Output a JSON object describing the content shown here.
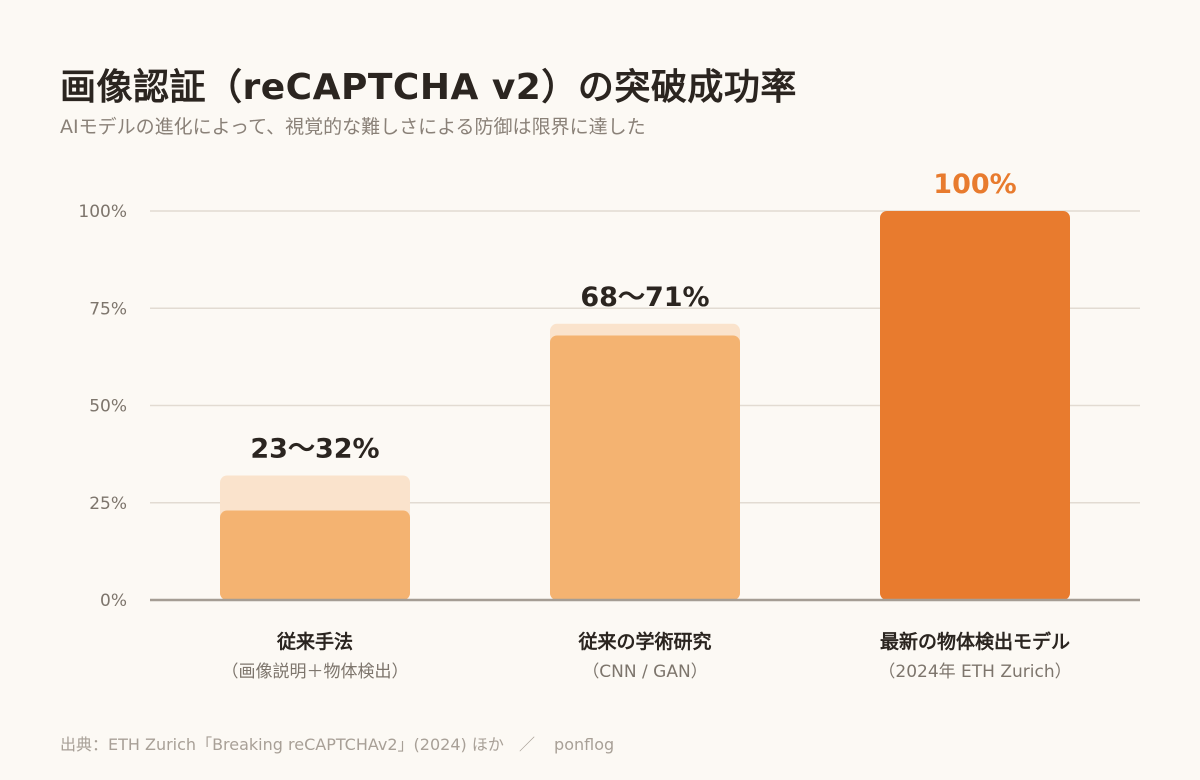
{
  "title": "画像認証（reCAPTCHA v2）の突破成功率",
  "subtitle": "AIモデルの進化によって、視覚的な難しさによる防御は限界に達した",
  "chart_data": {
    "type": "bar",
    "ylim": [
      0,
      100
    ],
    "yticks": [
      0,
      25,
      50,
      75,
      100
    ],
    "ytick_labels": [
      "0%",
      "25%",
      "50%",
      "75%",
      "100%"
    ],
    "grid": true,
    "categories": [
      {
        "label": "従来手法",
        "sublabel": "（画像説明＋物体検出）",
        "low": 23,
        "high": 32,
        "value_label": "23〜32%",
        "color": "#f4b371",
        "range_color": "#fae3cc",
        "label_color": "#2b2520"
      },
      {
        "label": "従来の学術研究",
        "sublabel": "（CNN / GAN）",
        "low": 68,
        "high": 71,
        "value_label": "68〜71%",
        "color": "#f4b371",
        "range_color": "#fae3cc",
        "label_color": "#2b2520"
      },
      {
        "label": "最新の物体検出モデル",
        "sublabel": "（2024年 ETH Zurich）",
        "low": 100,
        "high": 100,
        "value_label": "100%",
        "color": "#e87b2e",
        "range_color": "#fae3cc",
        "label_color": "#e87b2e"
      }
    ]
  },
  "footer": {
    "source": "出典：ETH Zurich「Breaking reCAPTCHAv2」(2024) ほか",
    "separator": "／",
    "brand": "ponflog"
  },
  "colors": {
    "background": "#fcf9f4",
    "grid": "#e2dbd2",
    "axis": "#a59d94",
    "tick_text": "#7d756c",
    "text": "#2b2520"
  }
}
